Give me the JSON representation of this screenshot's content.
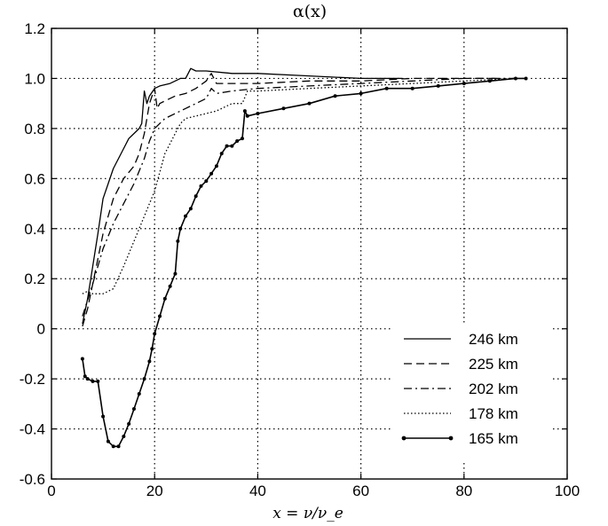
{
  "chart_data": {
    "type": "line",
    "title": "α(x)",
    "xlabel": "x = ν/ν_e",
    "ylabel": "",
    "xlim": [
      0,
      100
    ],
    "ylim": [
      -0.6,
      1.2
    ],
    "xticks": [
      0,
      20,
      40,
      60,
      80,
      100
    ],
    "yticks": [
      -0.6,
      -0.4,
      -0.2,
      0,
      0.2,
      0.4,
      0.6,
      0.8,
      1.0,
      1.2
    ],
    "xtick_labels": [
      "0",
      "20",
      "40",
      "60",
      "80",
      "100"
    ],
    "ytick_labels": [
      "-0.6",
      "-0.4",
      "-0.2",
      "0",
      "0.2",
      "0.4",
      "0.6",
      "0.8",
      "1.0",
      "1.2"
    ],
    "grid": true,
    "legend_position": "bottom-right",
    "series": [
      {
        "name": "246 km",
        "style": "solid",
        "x": [
          6,
          7,
          8,
          9,
          10,
          11,
          12,
          14,
          15,
          16,
          17,
          17.5,
          18,
          18.5,
          19,
          20,
          21,
          23,
          25,
          26,
          26.5,
          27,
          28,
          30,
          35,
          40,
          50,
          60,
          68
        ],
        "y": [
          0.02,
          0.12,
          0.25,
          0.38,
          0.52,
          0.58,
          0.64,
          0.72,
          0.76,
          0.78,
          0.8,
          0.82,
          0.95,
          0.9,
          0.93,
          0.96,
          0.97,
          0.98,
          1.0,
          1.0,
          1.02,
          1.04,
          1.03,
          1.03,
          1.02,
          1.02,
          1.01,
          1.0,
          1.0
        ]
      },
      {
        "name": "225 km",
        "style": "dashed",
        "x": [
          6,
          7,
          8,
          9,
          10,
          12,
          14,
          16,
          17,
          18,
          19,
          20,
          20.5,
          21,
          22,
          24,
          26,
          28,
          30,
          31,
          32,
          35,
          40,
          50,
          60,
          70,
          80,
          86
        ],
        "y": [
          0.01,
          0.08,
          0.18,
          0.28,
          0.38,
          0.52,
          0.6,
          0.65,
          0.7,
          0.78,
          0.9,
          0.96,
          0.88,
          0.9,
          0.91,
          0.93,
          0.94,
          0.96,
          0.99,
          1.02,
          0.98,
          0.98,
          0.98,
          0.99,
          0.99,
          1.0,
          1.0,
          1.0
        ]
      },
      {
        "name": "202 km",
        "style": "dashdot",
        "x": [
          6,
          8,
          10,
          12,
          14,
          16,
          18,
          19,
          20,
          21,
          22,
          24,
          26,
          28,
          30,
          31,
          32,
          35,
          40,
          50,
          60,
          70,
          80,
          90
        ],
        "y": [
          0.05,
          0.18,
          0.32,
          0.42,
          0.5,
          0.58,
          0.68,
          0.75,
          0.8,
          0.82,
          0.84,
          0.86,
          0.88,
          0.9,
          0.92,
          0.96,
          0.94,
          0.95,
          0.96,
          0.97,
          0.98,
          0.99,
          1.0,
          1.0
        ]
      },
      {
        "name": "178 km",
        "style": "dotted",
        "x": [
          6,
          7,
          8,
          10,
          12,
          14,
          16,
          18,
          20,
          22,
          24,
          25,
          26,
          28,
          30,
          32,
          35,
          37,
          38,
          40,
          50,
          60,
          70,
          80,
          90
        ],
        "y": [
          0.14,
          0.15,
          0.14,
          0.14,
          0.16,
          0.25,
          0.35,
          0.45,
          0.55,
          0.7,
          0.78,
          0.82,
          0.84,
          0.85,
          0.86,
          0.87,
          0.9,
          0.9,
          0.95,
          0.95,
          0.96,
          0.97,
          0.98,
          0.99,
          1.0
        ]
      },
      {
        "name": "165 km",
        "style": "solid-dots",
        "x": [
          6,
          6.5,
          7,
          8,
          9,
          10,
          11,
          12,
          13,
          14,
          15,
          16,
          17,
          18,
          19,
          19.5,
          20,
          21,
          22,
          23,
          24,
          24.5,
          25,
          26,
          27,
          28,
          29,
          30,
          31,
          32,
          33,
          34,
          35,
          36,
          37,
          37.5,
          38,
          40,
          45,
          50,
          55,
          60,
          65,
          70,
          75,
          80,
          85,
          90,
          92
        ],
        "y": [
          -0.12,
          -0.19,
          -0.2,
          -0.21,
          -0.21,
          -0.35,
          -0.45,
          -0.47,
          -0.47,
          -0.43,
          -0.38,
          -0.32,
          -0.26,
          -0.2,
          -0.13,
          -0.08,
          -0.02,
          0.05,
          0.12,
          0.17,
          0.22,
          0.35,
          0.4,
          0.45,
          0.48,
          0.53,
          0.57,
          0.59,
          0.62,
          0.65,
          0.7,
          0.73,
          0.73,
          0.75,
          0.76,
          0.87,
          0.85,
          0.86,
          0.88,
          0.9,
          0.93,
          0.94,
          0.96,
          0.96,
          0.97,
          0.98,
          0.99,
          1.0,
          1.0
        ]
      }
    ]
  }
}
